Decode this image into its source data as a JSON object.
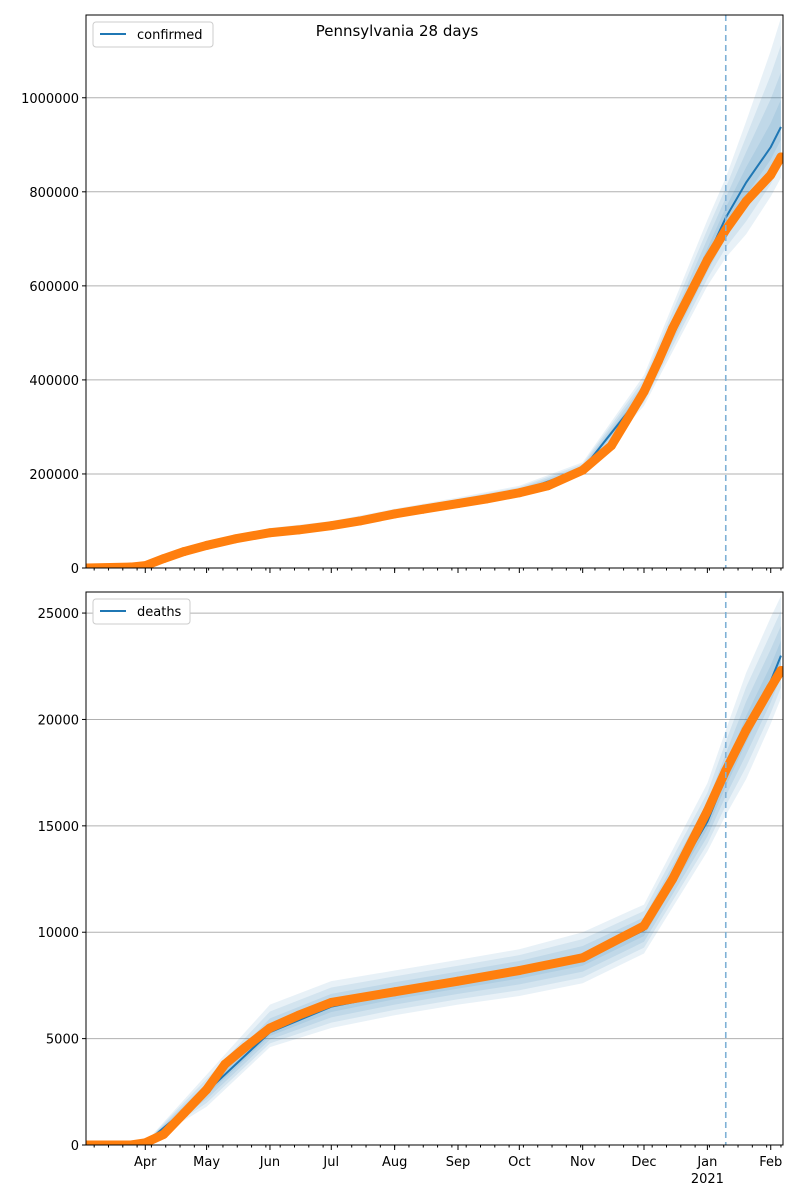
{
  "chart_data": [
    {
      "type": "line",
      "title": "Pennsylvania 28 days",
      "legend": {
        "label": "confirmed",
        "placement": "top-left"
      },
      "xlim": [
        "2020-03-03",
        "2021-02-07"
      ],
      "ylim": [
        0,
        1176000
      ],
      "yticks": [
        0,
        200000,
        400000,
        600000,
        800000,
        1000000
      ],
      "ytick_labels": [
        "0",
        "200000",
        "400000",
        "600000",
        "800000",
        "1000000"
      ],
      "grid": "horizontal",
      "forecast_start": "2021-01-10",
      "observed": {
        "name": "observed confirmed",
        "dates": [
          "2020-03-03",
          "2020-03-25",
          "2020-04-01",
          "2020-04-10",
          "2020-04-20",
          "2020-05-01",
          "2020-05-15",
          "2020-06-01",
          "2020-06-15",
          "2020-07-01",
          "2020-07-15",
          "2020-08-01",
          "2020-08-15",
          "2020-09-01",
          "2020-09-15",
          "2020-10-01",
          "2020-10-15",
          "2020-11-01",
          "2020-11-15",
          "2020-12-01",
          "2020-12-08",
          "2020-12-15",
          "2021-01-01",
          "2021-01-10",
          "2021-01-20",
          "2021-02-01",
          "2021-02-06"
        ],
        "values": [
          0,
          2000,
          5000,
          20000,
          35000,
          48000,
          62000,
          75000,
          81000,
          90000,
          100000,
          115000,
          125000,
          137000,
          147000,
          160000,
          175000,
          208000,
          260000,
          375000,
          440000,
          510000,
          655000,
          719000,
          780000,
          836000,
          874000
        ]
      },
      "model": {
        "name": "confirmed",
        "dates": [
          "2020-03-03",
          "2020-04-01",
          "2020-05-01",
          "2020-06-01",
          "2020-07-01",
          "2020-08-01",
          "2020-09-01",
          "2020-10-01",
          "2020-11-01",
          "2020-12-01",
          "2021-01-01",
          "2021-01-10",
          "2021-01-20",
          "2021-02-01",
          "2021-02-06"
        ],
        "median": [
          0,
          5000,
          48000,
          77000,
          92000,
          117000,
          139000,
          162000,
          210000,
          375000,
          660000,
          745000,
          820000,
          895000,
          938000
        ],
        "upper": [
          0,
          6000,
          55000,
          85000,
          100000,
          126000,
          150000,
          175000,
          225000,
          410000,
          740000,
          830000,
          950000,
          1100000,
          1170000
        ],
        "lower": [
          0,
          4000,
          42000,
          70000,
          85000,
          108000,
          130000,
          150000,
          197000,
          345000,
          600000,
          660000,
          710000,
          790000,
          830000
        ]
      }
    },
    {
      "type": "line",
      "title": "",
      "legend": {
        "label": "deaths",
        "placement": "top-left"
      },
      "xlim": [
        "2020-03-03",
        "2021-02-07"
      ],
      "ylim": [
        0,
        25990
      ],
      "yticks": [
        0,
        5000,
        10000,
        15000,
        20000,
        25000
      ],
      "ytick_labels": [
        "0",
        "5000",
        "10000",
        "15000",
        "20000",
        "25000"
      ],
      "grid": "horizontal",
      "forecast_start": "2021-01-10",
      "observed": {
        "name": "observed deaths",
        "dates": [
          "2020-03-03",
          "2020-03-25",
          "2020-04-01",
          "2020-04-10",
          "2020-04-20",
          "2020-05-01",
          "2020-05-10",
          "2020-05-20",
          "2020-06-01",
          "2020-06-15",
          "2020-07-01",
          "2020-08-01",
          "2020-09-01",
          "2020-10-01",
          "2020-11-01",
          "2020-11-15",
          "2020-12-01",
          "2020-12-15",
          "2021-01-01",
          "2021-01-10",
          "2021-01-20",
          "2021-02-01",
          "2021-02-06"
        ],
        "values": [
          0,
          0,
          100,
          500,
          1500,
          2600,
          3800,
          4600,
          5500,
          6100,
          6700,
          7200,
          7700,
          8200,
          8800,
          9500,
          10300,
          12500,
          15700,
          17600,
          19500,
          21500,
          22300
        ]
      },
      "model": {
        "name": "deaths",
        "dates": [
          "2020-03-03",
          "2020-04-01",
          "2020-05-01",
          "2020-06-01",
          "2020-07-01",
          "2020-08-01",
          "2020-09-01",
          "2020-10-01",
          "2020-11-01",
          "2020-12-01",
          "2021-01-01",
          "2021-01-10",
          "2021-01-20",
          "2021-02-01",
          "2021-02-06"
        ],
        "median": [
          0,
          80,
          2500,
          5300,
          6500,
          7100,
          7600,
          8100,
          8700,
          10100,
          15200,
          17300,
          19500,
          21800,
          23000
        ],
        "upper": [
          0,
          120,
          3300,
          6600,
          7700,
          8200,
          8700,
          9200,
          10000,
          11300,
          17000,
          19500,
          22200,
          24800,
          25800
        ],
        "lower": [
          0,
          40,
          1800,
          4600,
          5500,
          6100,
          6600,
          7000,
          7600,
          9000,
          13800,
          15500,
          17200,
          19800,
          21000
        ]
      }
    }
  ],
  "xaxis": {
    "month_ticks": [
      "2020-04-01",
      "2020-05-01",
      "2020-06-01",
      "2020-07-01",
      "2020-08-01",
      "2020-09-01",
      "2020-10-01",
      "2020-11-01",
      "2020-12-01",
      "2021-01-01",
      "2021-02-01"
    ],
    "month_labels": [
      "Apr",
      "May",
      "Jun",
      "Jul",
      "Aug",
      "Sep",
      "Oct",
      "Nov",
      "Dec",
      "Jan",
      "Feb"
    ],
    "year_label": "2021"
  },
  "colors": {
    "model": "#1f77b4",
    "observed": "#ff7f0e",
    "grid": "#b0b0b0",
    "forecast_line": "#7fb1d6"
  }
}
